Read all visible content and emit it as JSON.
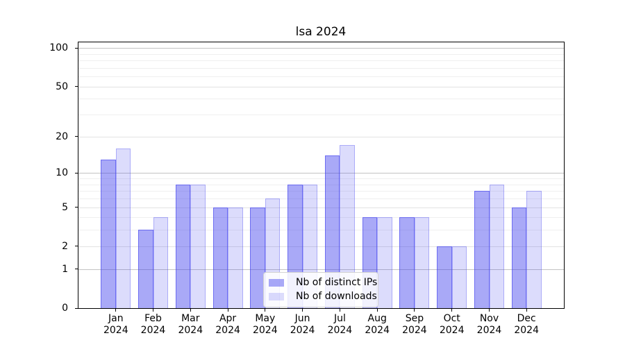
{
  "title": "lsa 2024",
  "chart_data": {
    "type": "bar",
    "title": "lsa 2024",
    "categories": [
      "Jan",
      "Feb",
      "Mar",
      "Apr",
      "May",
      "Jun",
      "Jul",
      "Aug",
      "Sep",
      "Oct",
      "Nov",
      "Dec"
    ],
    "x_sub_labels": [
      "2024",
      "2024",
      "2024",
      "2024",
      "2024",
      "2024",
      "2024",
      "2024",
      "2024",
      "2024",
      "2024",
      "2024"
    ],
    "series": [
      {
        "name": "Nb of distinct IPs",
        "values": [
          13,
          3,
          8,
          5,
          5,
          8,
          14,
          4,
          4,
          2,
          7,
          5
        ],
        "fill_color": "rgba(68,68,238,0.46)",
        "edge_color": "rgba(68,68,238,0.60)"
      },
      {
        "name": "Nb of downloads",
        "values": [
          16,
          4,
          8,
          5,
          6,
          8,
          17,
          4,
          4,
          2,
          8,
          7
        ],
        "fill_color": "rgba(68,68,238,0.19)",
        "edge_color": "rgba(68,68,238,0.32)"
      }
    ],
    "y_scale": "log1p",
    "ylim": [
      0,
      110
    ],
    "y_ticks": [
      0,
      1,
      2,
      5,
      10,
      20,
      50,
      100
    ],
    "y_gridlines_decade": [
      1,
      10,
      100
    ],
    "y_gridlines_labeled_minor": [
      2,
      5,
      20,
      50
    ],
    "y_gridlines_minor": [
      3,
      4,
      6,
      7,
      8,
      9,
      30,
      40,
      60,
      70,
      80,
      90
    ],
    "grid": true,
    "legend_position": "lower center"
  },
  "colors": {
    "bar_base": "#4444ee",
    "bar_dark_apparent": "#a9a9f7",
    "bar_light_apparent": "#dcdcfa",
    "grid_decade": "#c3c3c3",
    "grid_labeled_minor": "#e2e2e2",
    "grid_minor": "#efefef",
    "axis": "#000000",
    "background": "#ffffff"
  }
}
